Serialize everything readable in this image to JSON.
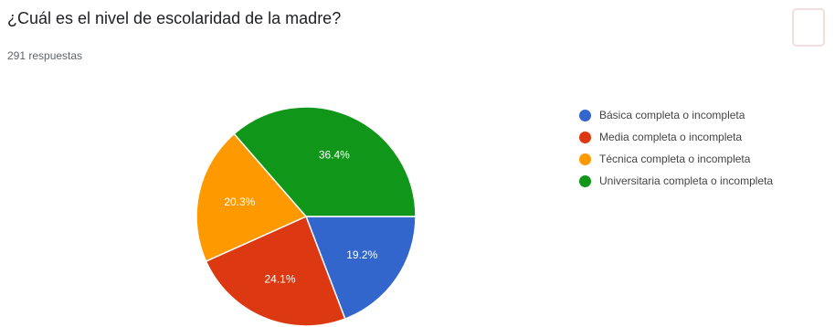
{
  "form": {
    "question": "¿Cuál es el nivel de escolaridad de la madre?",
    "response_count": "291 respuestas"
  },
  "chart_data": {
    "type": "pie",
    "title": "",
    "categories": [
      "Básica completa o incompleta",
      "Media completa o incompleta",
      "Técnica completa o incompleta",
      "Universitaria completa o incompleta"
    ],
    "values": [
      19.2,
      24.1,
      20.3,
      36.4
    ],
    "labels": [
      "19.2%",
      "24.1%",
      "20.3%",
      "36.4%"
    ],
    "colors": [
      "#3366cc",
      "#dc3912",
      "#ff9900",
      "#109618"
    ],
    "legend_position": "right"
  }
}
